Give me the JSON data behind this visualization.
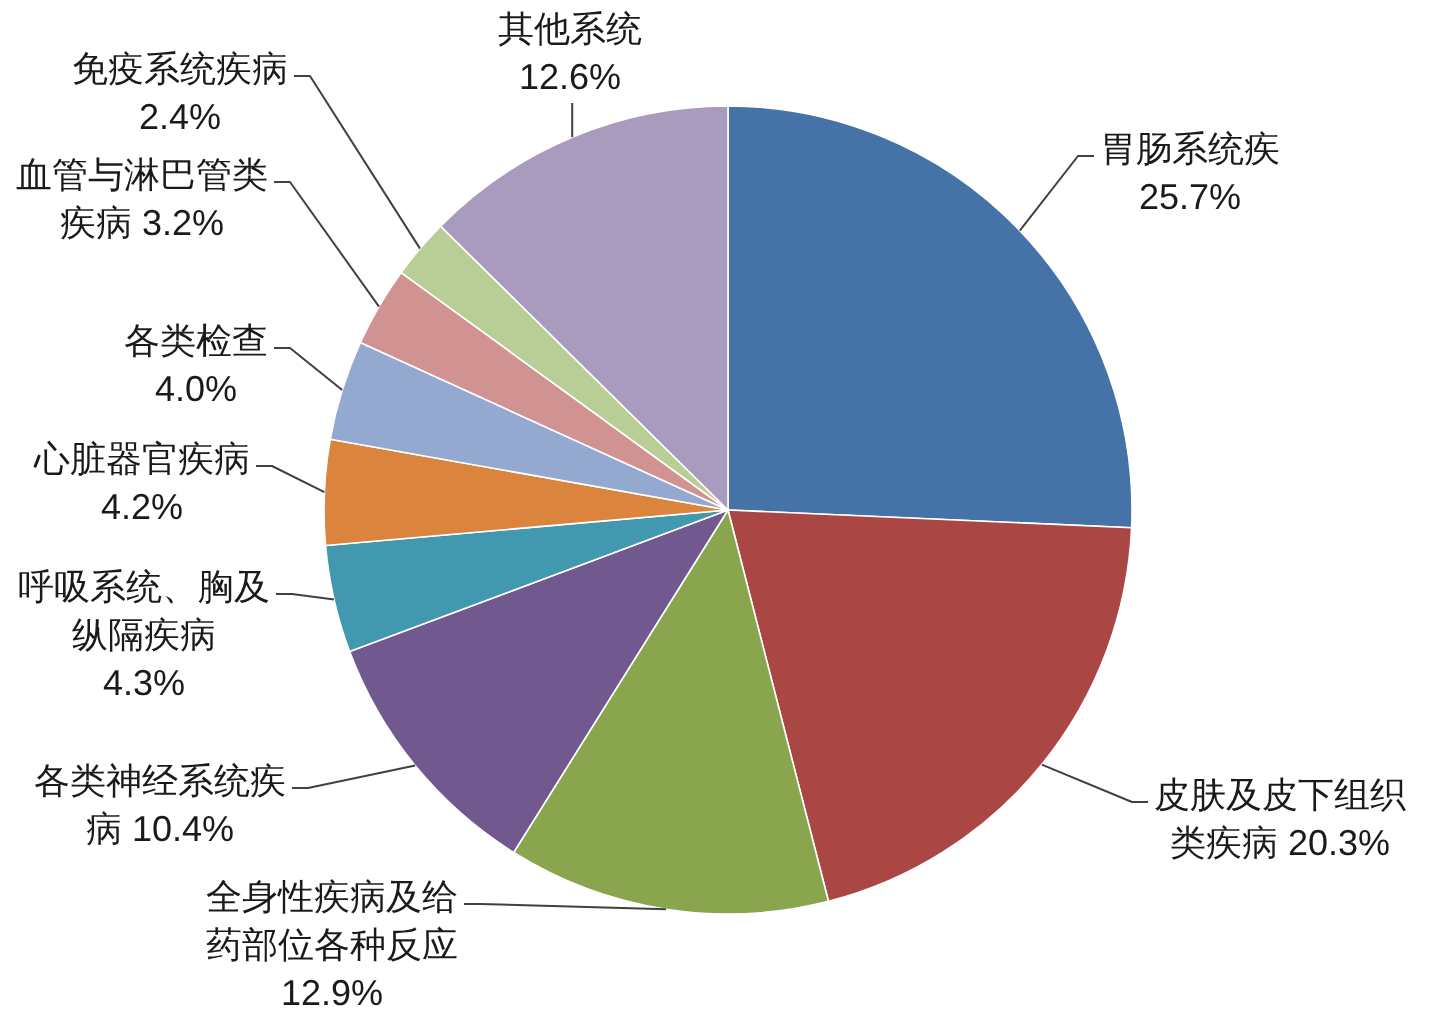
{
  "chart_data": {
    "type": "pie",
    "categories": [
      "胃肠系统疾",
      "皮肤及皮下组织类疾病",
      "全身性疾病及给药部位各种反应",
      "各类神经系统疾病",
      "呼吸系统、胸及纵隔疾病",
      "心脏器官疾病",
      "各类检查",
      "血管与淋巴管类疾病",
      "免疫系统疾病",
      "其他系统"
    ],
    "values": [
      25.7,
      20.3,
      12.9,
      10.4,
      4.3,
      4.2,
      4.0,
      3.2,
      2.4,
      12.6
    ],
    "value_labels": [
      "25.7%",
      "20.3%",
      "12.9%",
      "10.4%",
      "4.3%",
      "4.2%",
      "4.0%",
      "3.2%",
      "2.4%",
      "12.6%"
    ],
    "colors": [
      "#4572a7",
      "#aa4643",
      "#89a54e",
      "#71588f",
      "#4198af",
      "#db843d",
      "#93a9cf",
      "#d19392",
      "#b9cd96",
      "#a99bbd"
    ]
  }
}
